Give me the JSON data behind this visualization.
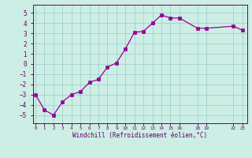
{
  "x": [
    0,
    1,
    2,
    3,
    4,
    5,
    6,
    7,
    8,
    9,
    10,
    11,
    12,
    13,
    14,
    15,
    16,
    18,
    19,
    22,
    23
  ],
  "y": [
    -3.0,
    -4.5,
    -5.0,
    -3.7,
    -3.0,
    -2.7,
    -1.8,
    -1.5,
    -0.3,
    0.1,
    1.5,
    3.1,
    3.2,
    4.0,
    4.8,
    4.5,
    4.5,
    3.5,
    3.5,
    3.7,
    3.3
  ],
  "xlabel": "Windchill (Refroidissement éolien,°C)",
  "yticks": [
    -5,
    -4,
    -3,
    -2,
    -1,
    0,
    1,
    2,
    3,
    4,
    5
  ],
  "ylim": [
    -5.8,
    5.8
  ],
  "xlim": [
    -0.3,
    23.5
  ],
  "line_color": "#990099",
  "marker_color": "#990099",
  "bg_color": "#cceee4",
  "grid_color": "#99cccc",
  "tick_color": "#660066",
  "border_color": "#660066",
  "xtick_pos": [
    0,
    1,
    2,
    3,
    4,
    5,
    6,
    7,
    8,
    9,
    10,
    11,
    12,
    13,
    14,
    15,
    16,
    18,
    19,
    22,
    23
  ],
  "xtick_lab": [
    "0",
    "1",
    "2",
    "3",
    "4",
    "5",
    "6",
    "7",
    "8",
    "9",
    "10",
    "11",
    "12",
    "13",
    "14",
    "15",
    "16",
    "18",
    "19",
    "22",
    "23"
  ]
}
